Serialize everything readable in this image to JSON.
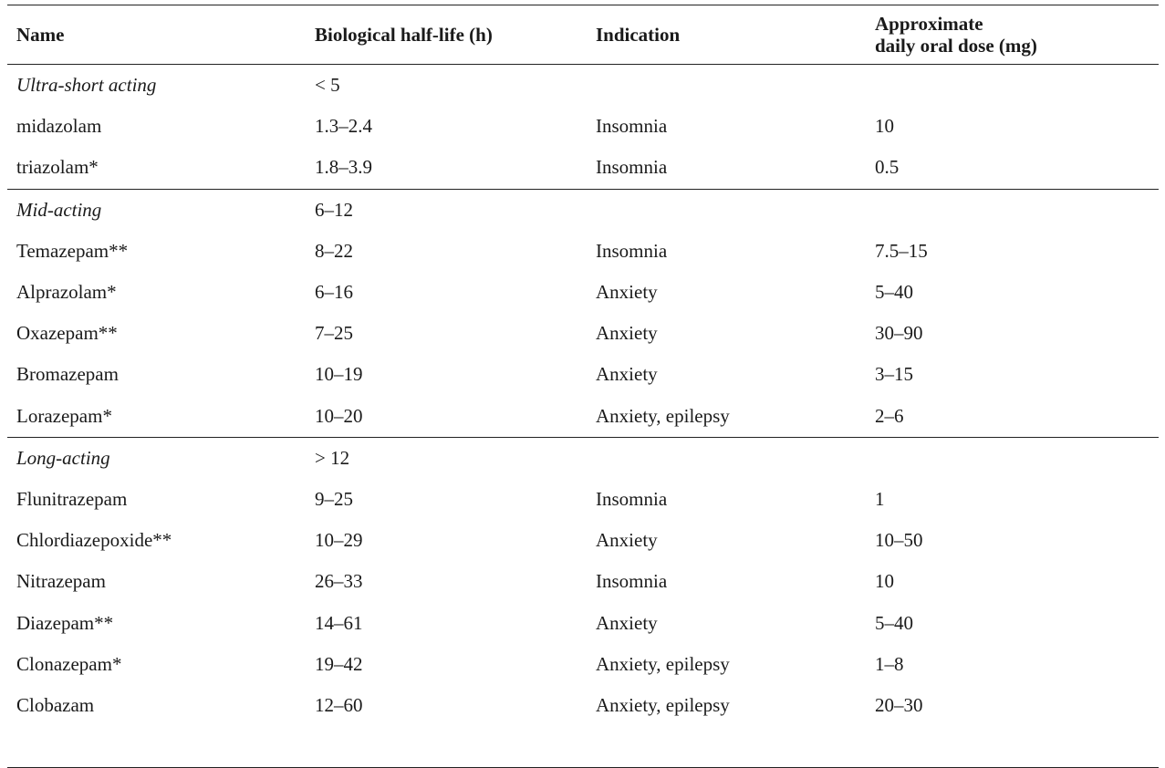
{
  "headers": {
    "name": "Name",
    "half_life": "Biological half-life (h)",
    "indication": "Indication",
    "dose_line1": "Approximate",
    "dose_line2": "daily oral dose (mg)"
  },
  "groups": [
    {
      "name": "Ultra-short acting",
      "range": "< 5",
      "rows": [
        {
          "name": "midazolam",
          "half_life": "1.3–2.4",
          "indication": "Insomnia",
          "dose": "10"
        },
        {
          "name": "triazolam*",
          "half_life": "1.8–3.9",
          "indication": "Insomnia",
          "dose": "0.5"
        }
      ]
    },
    {
      "name": "Mid-acting",
      "range": "6–12",
      "rows": [
        {
          "name": "Temazepam**",
          "half_life": "8–22",
          "indication": "Insomnia",
          "dose": "7.5–15"
        },
        {
          "name": "Alprazolam*",
          "half_life": "6–16",
          "indication": "Anxiety",
          "dose": "5–40"
        },
        {
          "name": "Oxazepam**",
          "half_life": "7–25",
          "indication": "Anxiety",
          "dose": "30–90"
        },
        {
          "name": "Bromazepam",
          "half_life": "10–19",
          "indication": "Anxiety",
          "dose": "3–15"
        },
        {
          "name": "Lorazepam*",
          "half_life": "10–20",
          "indication": "Anxiety, epilepsy",
          "dose": "2–6"
        }
      ]
    },
    {
      "name": "Long-acting",
      "range": "> 12",
      "rows": [
        {
          "name": "Flunitrazepam",
          "half_life": "9–25",
          "indication": "Insomnia",
          "dose": "1"
        },
        {
          "name": "Chlordiazepoxide**",
          "half_life": "10–29",
          "indication": "Anxiety",
          "dose": "10–50"
        },
        {
          "name": "Nitrazepam",
          "half_life": "26–33",
          "indication": "Insomnia",
          "dose": "10"
        },
        {
          "name": "Diazepam**",
          "half_life": "14–61",
          "indication": "Anxiety",
          "dose": "5–40"
        },
        {
          "name": "Clonazepam*",
          "half_life": "19–42",
          "indication": "Anxiety, epilepsy",
          "dose": "1–8"
        },
        {
          "name": "Clobazam",
          "half_life": "12–60",
          "indication": "Anxiety, epilepsy",
          "dose": "20–30"
        }
      ]
    }
  ]
}
